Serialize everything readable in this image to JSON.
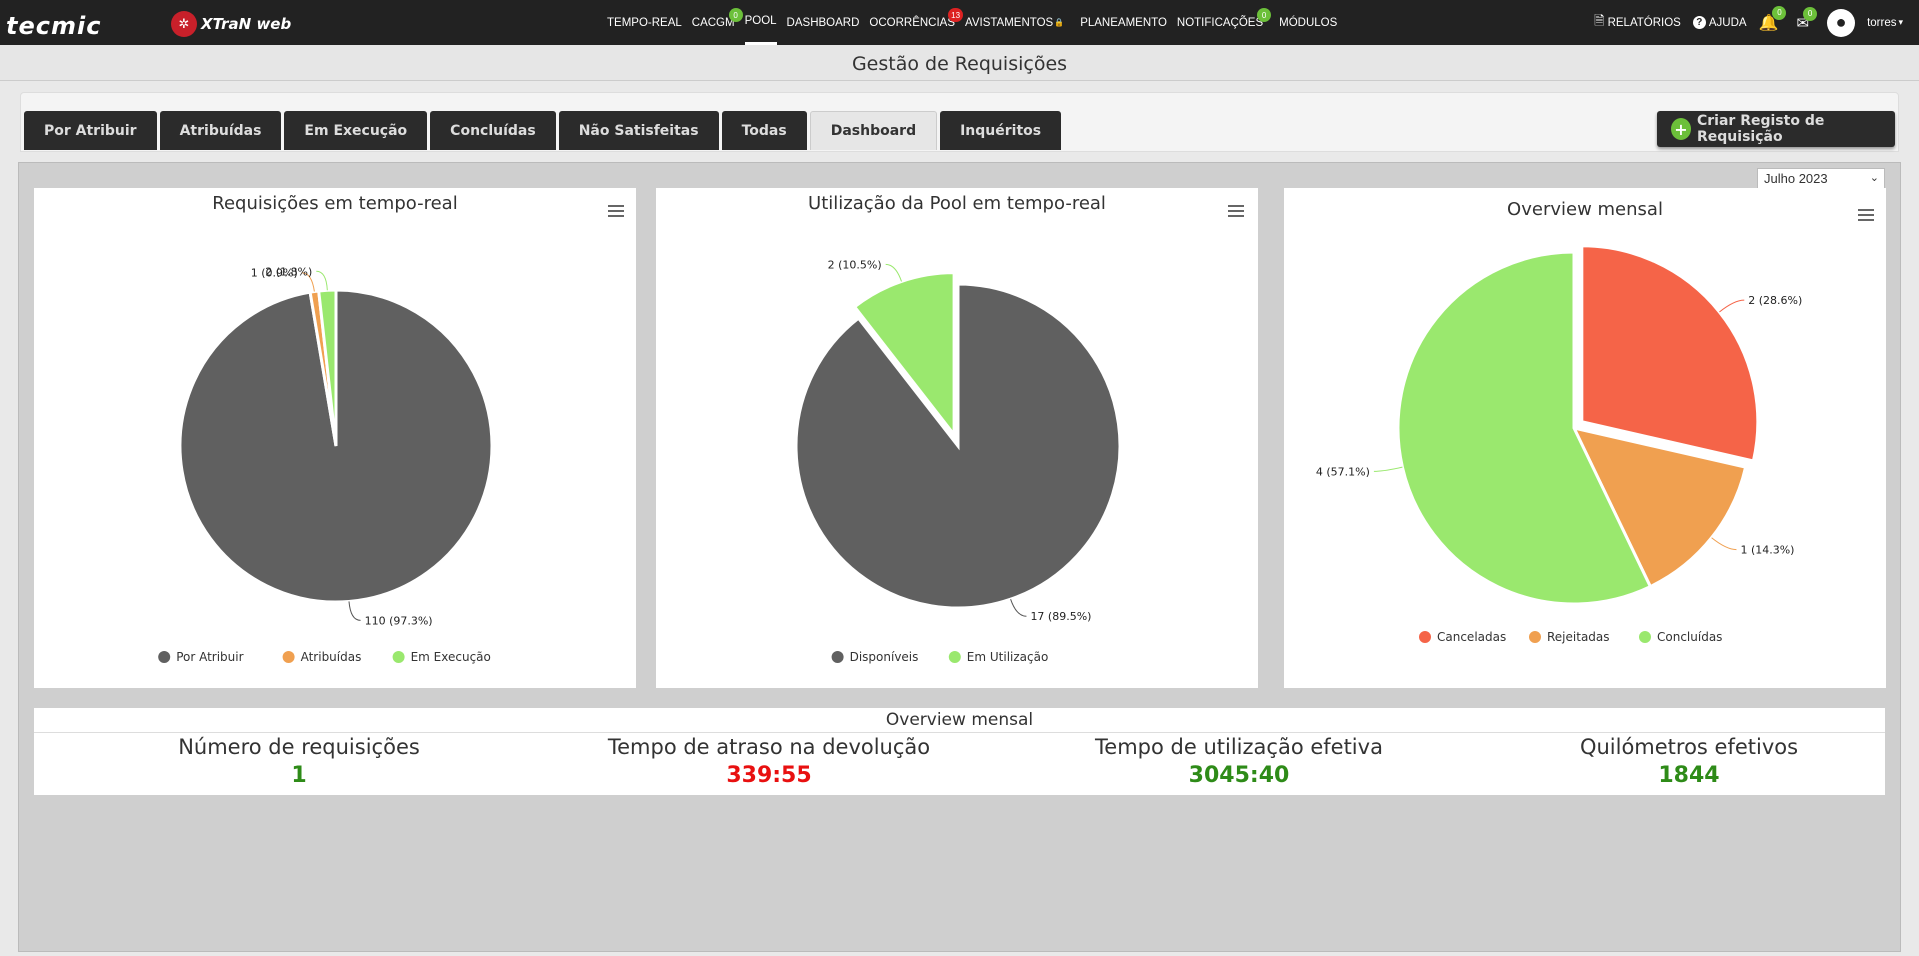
{
  "navbar": {
    "logo_main": "tecmic",
    "logo_product": "XTraN web",
    "items": [
      {
        "label": "TEMPO-REAL"
      },
      {
        "label": "CACGM",
        "badge": "0",
        "badge_color": "green"
      },
      {
        "label": "POOL",
        "active": true
      },
      {
        "label": "DASHBOARD"
      },
      {
        "label": "OCORRÊNCIAS",
        "badge": "13",
        "badge_color": "red"
      },
      {
        "label": "AVISTAMENTOS"
      },
      {
        "label": "PLANEAMENTO"
      },
      {
        "label": "NOTIFICAÇÕES",
        "badge": "0",
        "badge_color": "green"
      },
      {
        "label": "MÓDULOS"
      }
    ],
    "reports_label": "RELATÓRIOS",
    "help_label": "AJUDA",
    "bell_badge": "0",
    "mail_badge": "0",
    "user_name": "torres"
  },
  "page_title": "Gestão de Requisições",
  "tabs": [
    {
      "label": "Por Atribuir"
    },
    {
      "label": "Atribuídas"
    },
    {
      "label": "Em Execução"
    },
    {
      "label": "Concluídas"
    },
    {
      "label": "Não Satisfeitas"
    },
    {
      "label": "Todas"
    },
    {
      "label": "Dashboard",
      "active": true
    },
    {
      "label": "Inquéritos"
    }
  ],
  "create_button_label": "Criar Registo de Requisição",
  "month_select": {
    "value": "Julho 2023"
  },
  "colors": {
    "dark_gray": "#606060",
    "orange": "#f0a050",
    "light_green": "#9ae86e",
    "red_orange": "#f56448",
    "green_value": "#2e8b18",
    "red_value": "#e81010"
  },
  "chart_data": [
    {
      "type": "pie",
      "title": "Requisições em tempo-real",
      "legend_position": "bottom",
      "slices": [
        {
          "name": "Por Atribuir",
          "value": 110,
          "label": "110 (97.3%)",
          "color": "#606060"
        },
        {
          "name": "Atribuídas",
          "value": 1,
          "label": "1 (0.9%)",
          "color": "#f0a050"
        },
        {
          "name": "Em Execução",
          "value": 2,
          "label": "2 (1.8%)",
          "color": "#9ae86e"
        }
      ]
    },
    {
      "type": "pie",
      "title": "Utilização da Pool em tempo-real",
      "legend_position": "bottom",
      "slices": [
        {
          "name": "Disponíveis",
          "value": 17,
          "label": "17 (89.5%)",
          "color": "#606060"
        },
        {
          "name": "Em Utilização",
          "value": 2,
          "label": "2 (10.5%)",
          "color": "#9ae86e"
        }
      ]
    },
    {
      "type": "pie",
      "title": "Overview mensal",
      "legend_position": "bottom",
      "slices": [
        {
          "name": "Canceladas",
          "value": 2,
          "label": "2 (28.6%)",
          "color": "#f56448"
        },
        {
          "name": "Rejeitadas",
          "value": 1,
          "label": "1 (14.3%)",
          "color": "#f0a050"
        },
        {
          "name": "Concluídas",
          "value": 4,
          "label": "4 (57.1%)",
          "color": "#9ae86e"
        }
      ]
    }
  ],
  "summary": {
    "title": "Overview mensal",
    "metrics": [
      {
        "label": "Número de requisições",
        "value": "1",
        "color": "#2e8b18"
      },
      {
        "label": "Tempo de atraso na devolução",
        "value": "339:55",
        "color": "#e81010"
      },
      {
        "label": "Tempo de utilização efetiva",
        "value": "3045:40",
        "color": "#2e8b18"
      },
      {
        "label": "Quilómetros efetivos",
        "value": "1844",
        "color": "#2e8b18"
      }
    ]
  }
}
